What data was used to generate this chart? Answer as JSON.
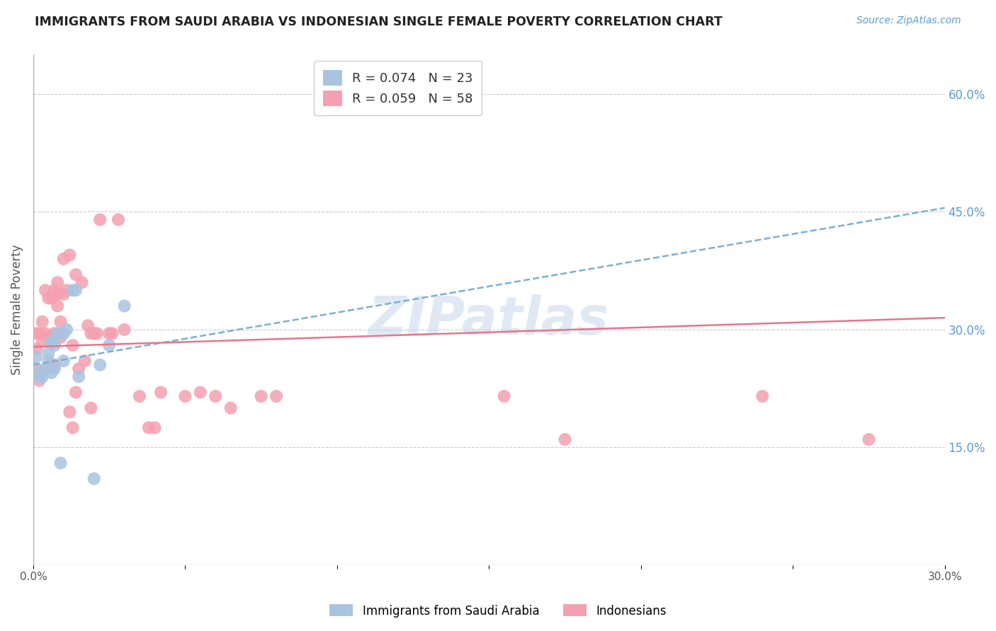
{
  "title": "IMMIGRANTS FROM SAUDI ARABIA VS INDONESIAN SINGLE FEMALE POVERTY CORRELATION CHART",
  "source": "Source: ZipAtlas.com",
  "xlabel": "",
  "ylabel": "Single Female Poverty",
  "xlim": [
    0.0,
    0.3
  ],
  "ylim": [
    0.0,
    0.65
  ],
  "xticks": [
    0.0,
    0.05,
    0.1,
    0.15,
    0.2,
    0.25,
    0.3
  ],
  "yticks_right": [
    0.15,
    0.3,
    0.45,
    0.6
  ],
  "ytick_labels_right": [
    "15.0%",
    "30.0%",
    "45.0%",
    "60.0%"
  ],
  "saudi_R": 0.074,
  "saudi_N": 23,
  "indonesian_R": 0.059,
  "indonesian_N": 58,
  "saudi_color": "#a8c4e0",
  "indonesian_color": "#f4a0b0",
  "saudi_line_color": "#7ab0d4",
  "indonesian_line_color": "#e8748a",
  "watermark": "ZIPatlas",
  "saudi_x": [
    0.001,
    0.001,
    0.002,
    0.003,
    0.004,
    0.005,
    0.005,
    0.006,
    0.006,
    0.007,
    0.007,
    0.008,
    0.009,
    0.01,
    0.01,
    0.011,
    0.013,
    0.014,
    0.015,
    0.02,
    0.022,
    0.025,
    0.03
  ],
  "saudi_y": [
    0.245,
    0.265,
    0.24,
    0.24,
    0.25,
    0.26,
    0.27,
    0.245,
    0.285,
    0.25,
    0.28,
    0.295,
    0.13,
    0.26,
    0.295,
    0.3,
    0.35,
    0.35,
    0.24,
    0.11,
    0.255,
    0.28,
    0.33
  ],
  "indonesian_x": [
    0.001,
    0.001,
    0.001,
    0.002,
    0.002,
    0.003,
    0.003,
    0.004,
    0.004,
    0.005,
    0.005,
    0.005,
    0.006,
    0.006,
    0.007,
    0.007,
    0.007,
    0.008,
    0.008,
    0.008,
    0.009,
    0.009,
    0.01,
    0.01,
    0.011,
    0.012,
    0.012,
    0.013,
    0.013,
    0.014,
    0.014,
    0.015,
    0.016,
    0.017,
    0.018,
    0.019,
    0.019,
    0.02,
    0.021,
    0.022,
    0.025,
    0.026,
    0.028,
    0.03,
    0.035,
    0.038,
    0.04,
    0.042,
    0.05,
    0.055,
    0.06,
    0.065,
    0.075,
    0.08,
    0.155,
    0.175,
    0.24,
    0.275
  ],
  "indonesian_y": [
    0.25,
    0.275,
    0.295,
    0.235,
    0.295,
    0.285,
    0.31,
    0.295,
    0.35,
    0.25,
    0.29,
    0.34,
    0.255,
    0.34,
    0.255,
    0.295,
    0.35,
    0.33,
    0.345,
    0.36,
    0.29,
    0.31,
    0.345,
    0.39,
    0.35,
    0.195,
    0.395,
    0.175,
    0.28,
    0.22,
    0.37,
    0.25,
    0.36,
    0.26,
    0.305,
    0.295,
    0.2,
    0.295,
    0.295,
    0.44,
    0.295,
    0.295,
    0.44,
    0.3,
    0.215,
    0.175,
    0.175,
    0.22,
    0.215,
    0.22,
    0.215,
    0.2,
    0.215,
    0.215,
    0.215,
    0.16,
    0.215,
    0.16
  ],
  "saudi_trend_x": [
    0.0,
    0.3
  ],
  "saudi_trend_y": [
    0.255,
    0.455
  ],
  "indonesian_trend_x": [
    0.0,
    0.3
  ],
  "indonesian_trend_y": [
    0.278,
    0.315
  ]
}
